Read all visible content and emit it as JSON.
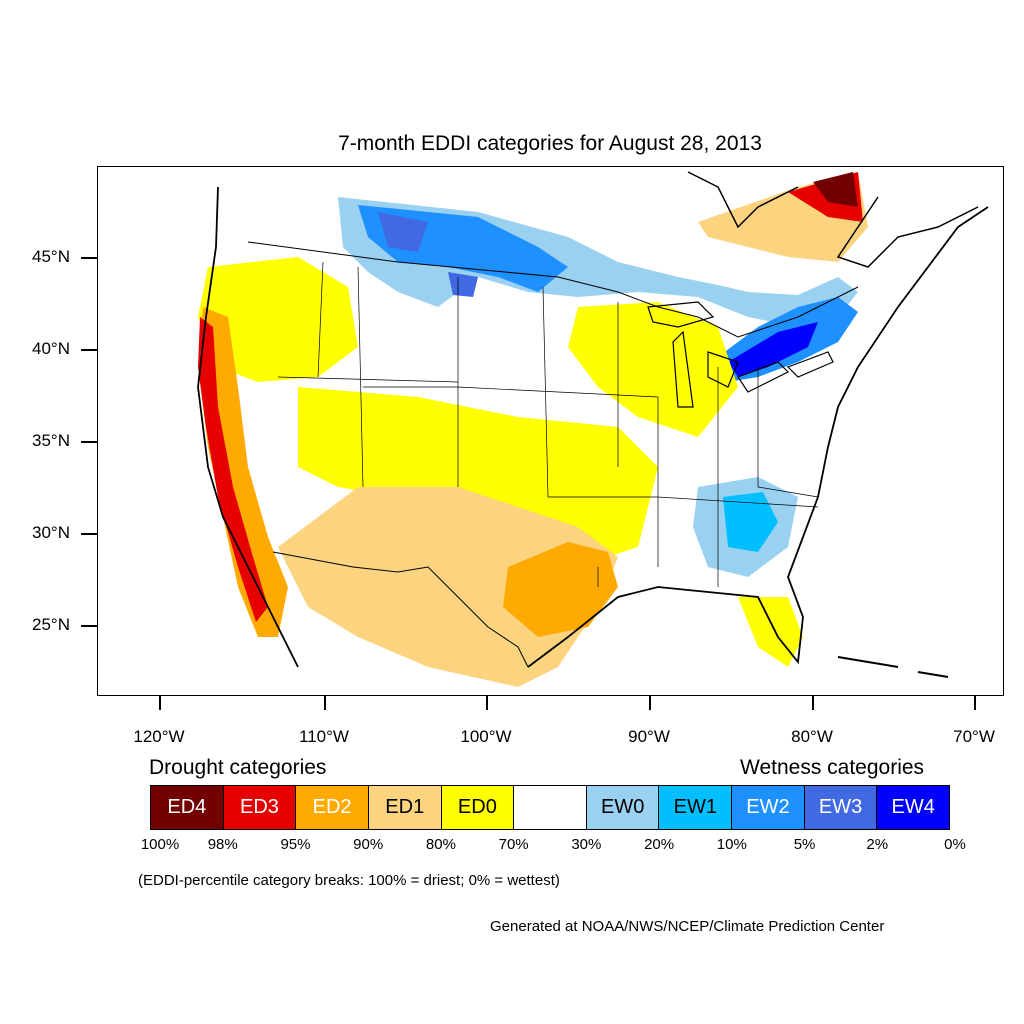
{
  "title": "7-month EDDI categories for August 28, 2013",
  "axes": {
    "lat_labels": [
      "45°N",
      "40°N",
      "35°N",
      "30°N",
      "25°N"
    ],
    "lon_labels": [
      "120°W",
      "110°W",
      "100°W",
      "90°W",
      "80°W",
      "70°W"
    ]
  },
  "legend": {
    "drought_heading": "Drought categories",
    "wetness_heading": "Wetness categories",
    "categories": [
      {
        "label": "ED4",
        "color": "#730000",
        "text_color": "#ffffff"
      },
      {
        "label": "ED3",
        "color": "#e60000",
        "text_color": "#ffffff"
      },
      {
        "label": "ED2",
        "color": "#ffaa00",
        "text_color": "#ffffff"
      },
      {
        "label": "ED1",
        "color": "#fcd37f",
        "text_color": "#000000"
      },
      {
        "label": "ED0",
        "color": "#ffff00",
        "text_color": "#000000"
      },
      {
        "label": "",
        "color": "#ffffff",
        "text_color": "#000000"
      },
      {
        "label": "EW0",
        "color": "#9ad0f0",
        "text_color": "#000000"
      },
      {
        "label": "EW1",
        "color": "#00bfff",
        "text_color": "#000000"
      },
      {
        "label": "EW2",
        "color": "#1e90ff",
        "text_color": "#ffffff"
      },
      {
        "label": "EW3",
        "color": "#4169e1",
        "text_color": "#ffffff"
      },
      {
        "label": "EW4",
        "color": "#0000ff",
        "text_color": "#ffffff"
      }
    ],
    "percentiles": [
      "100%",
      "98%",
      "95%",
      "90%",
      "80%",
      "70%",
      "30%",
      "20%",
      "10%",
      "5%",
      "2%",
      "0%"
    ]
  },
  "note": "(EDDI-percentile category breaks: 100% = driest; 0% = wettest)",
  "credit": "Generated at NOAA/NWS/NCEP/Climate Prediction Center"
}
